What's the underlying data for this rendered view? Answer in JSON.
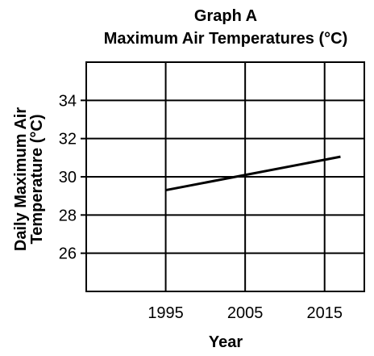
{
  "chart_data": {
    "type": "line",
    "title": "Graph A",
    "subtitle": "Maximum Air Temperatures (°C)",
    "xlabel": "Year",
    "ylabel_line1": "Daily Maximum Air",
    "ylabel_line2": "Temperature (°C)",
    "x_ticks": [
      {
        "value": 1995,
        "label": "1995"
      },
      {
        "value": 2005,
        "label": "2005"
      },
      {
        "value": 2015,
        "label": "2015"
      }
    ],
    "y_ticks": [
      {
        "value": 26,
        "label": "26"
      },
      {
        "value": 28,
        "label": "28"
      },
      {
        "value": 30,
        "label": "30"
      },
      {
        "value": 32,
        "label": "32"
      },
      {
        "value": 34,
        "label": "34"
      }
    ],
    "xlim": [
      1985,
      2020
    ],
    "ylim": [
      24,
      36
    ],
    "grid": true,
    "series": [
      {
        "x": [
          1995,
          2017
        ],
        "y": [
          29.3,
          31.05
        ]
      }
    ]
  }
}
